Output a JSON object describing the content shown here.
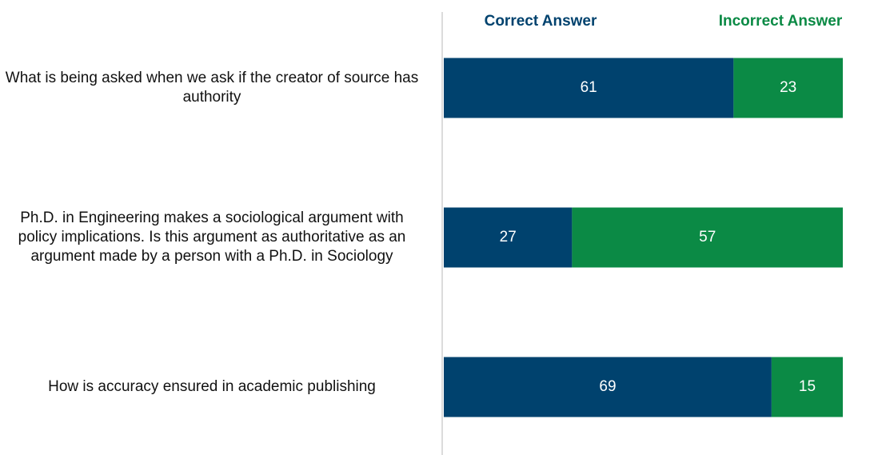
{
  "chart_data": {
    "type": "stacked_bar_horizontal",
    "categories": [
      "What is being asked when we ask if the creator of source has authority",
      "Ph.D. in Engineering makes a sociological argument with policy implications. Is this argument as authoritative as an argument made by a person with a Ph.D. in Sociology",
      "How is accuracy ensured in academic publishing"
    ],
    "series": [
      {
        "name": "Correct Answer",
        "color": "#00426e",
        "values": [
          61,
          27,
          69
        ]
      },
      {
        "name": "Incorrect Answer",
        "color": "#0b8a45",
        "values": [
          23,
          57,
          15
        ]
      }
    ],
    "xlim": [
      0,
      84
    ]
  }
}
